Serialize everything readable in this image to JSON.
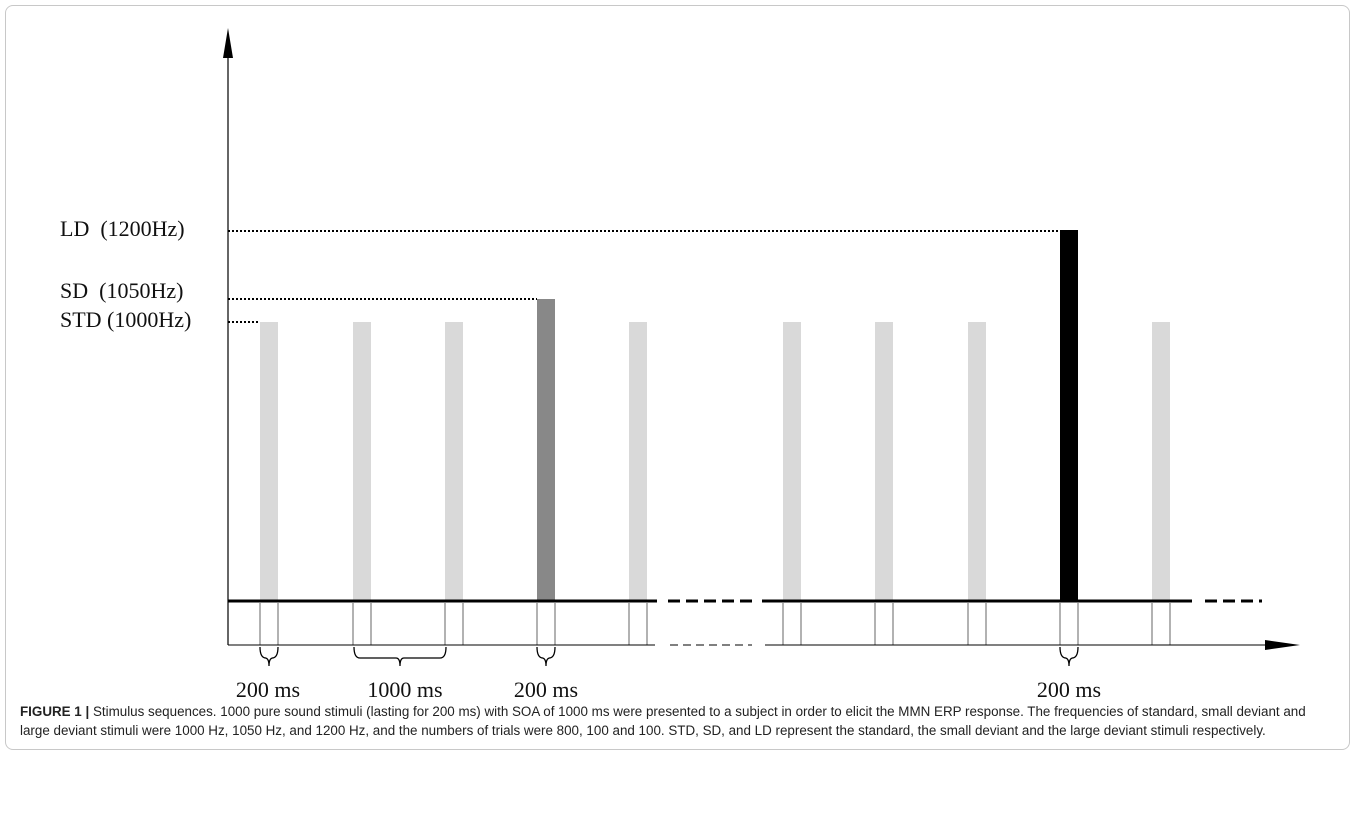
{
  "diagram": {
    "levels": [
      "LD  (1200Hz)",
      "SD  (1050Hz)",
      "STD (1000Hz)"
    ],
    "durations": [
      "200 ms",
      "1000 ms",
      "200 ms",
      "200 ms"
    ]
  },
  "caption": {
    "label": "FIGURE 1 |",
    "text": "Stimulus sequences. 1000 pure sound stimuli (lasting for 200 ms) with SOA of 1000 ms were presented to a subject in order to elicit the MMN ERP response. The frequencies of standard, small deviant and large deviant stimuli were 1000 Hz, 1050 Hz, and 1200 Hz, and the numbers of trials were 800, 100 and 100. STD, SD, and LD represent the standard, the small deviant and the large deviant stimuli respectively."
  }
}
